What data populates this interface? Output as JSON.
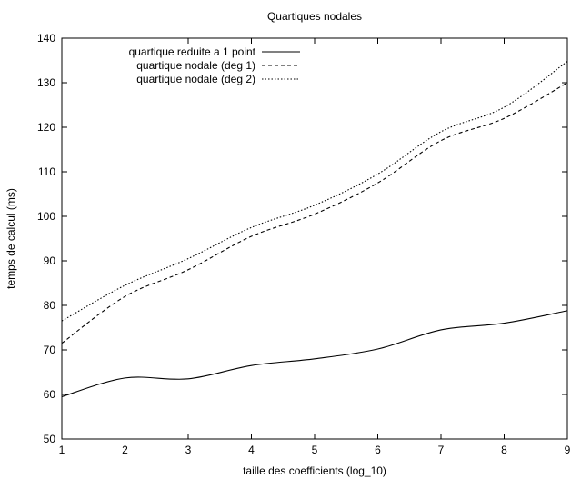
{
  "chart_data": {
    "type": "line",
    "title": "Quartiques nodales",
    "xlabel": "taille des coefficients (log_10)",
    "ylabel": "temps de calcul (ms)",
    "xlim": [
      1,
      9
    ],
    "ylim": [
      50,
      140
    ],
    "xticks": [
      1,
      2,
      3,
      4,
      5,
      6,
      7,
      8,
      9
    ],
    "yticks": [
      50,
      60,
      70,
      80,
      90,
      100,
      110,
      120,
      130,
      140
    ],
    "grid": false,
    "legend_position": "top-left",
    "x": [
      1,
      2,
      3,
      4,
      5,
      6,
      7,
      8,
      9
    ],
    "series": [
      {
        "name": "quartique reduite a 1 point",
        "style": "solid",
        "values": [
          59.5,
          63.7,
          63.5,
          66.5,
          68.0,
          70.2,
          74.5,
          76.0,
          78.8
        ]
      },
      {
        "name": "quartique nodale (deg 1)",
        "style": "dashed",
        "values": [
          71.5,
          82.0,
          88.0,
          95.5,
          100.5,
          107.5,
          117.0,
          122.0,
          130.0
        ]
      },
      {
        "name": "quartique nodale (deg 2)",
        "style": "dotted",
        "values": [
          76.5,
          84.5,
          90.5,
          97.5,
          102.5,
          109.5,
          119.0,
          124.5,
          134.8
        ]
      }
    ]
  }
}
